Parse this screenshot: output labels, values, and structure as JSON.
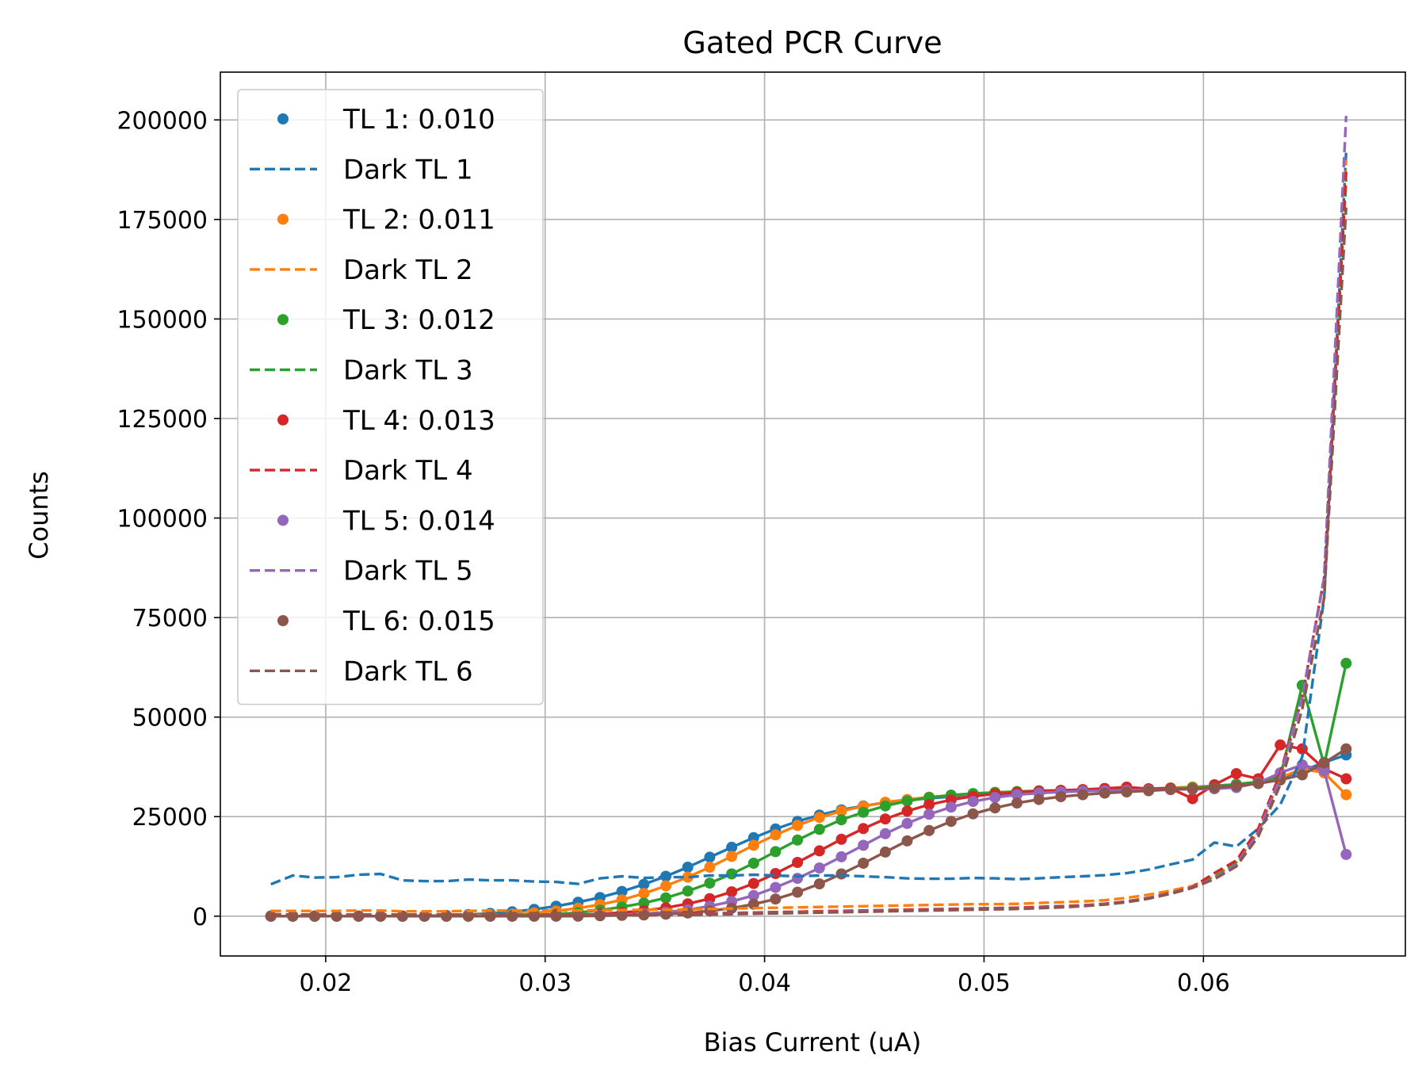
{
  "chart_data": {
    "type": "line",
    "title": "Gated PCR Curve",
    "xlabel": "Bias Current (uA)",
    "ylabel": "Counts",
    "xlim": [
      0.0152,
      0.0692
    ],
    "ylim": [
      -10000,
      212000
    ],
    "xticks": [
      0.02,
      0.03,
      0.04,
      0.05,
      0.06
    ],
    "xtick_labels": [
      "0.02",
      "0.03",
      "0.04",
      "0.05",
      "0.06"
    ],
    "yticks": [
      0,
      25000,
      50000,
      75000,
      100000,
      125000,
      150000,
      175000,
      200000
    ],
    "ytick_labels": [
      "0",
      "25000",
      "50000",
      "75000",
      "100000",
      "125000",
      "150000",
      "175000",
      "200000"
    ],
    "grid": true,
    "legend_position": "upper-left",
    "x": [
      0.0175,
      0.0185,
      0.0195,
      0.0205,
      0.0215,
      0.0225,
      0.0235,
      0.0245,
      0.0255,
      0.0265,
      0.0275,
      0.0285,
      0.0295,
      0.0305,
      0.0315,
      0.0325,
      0.0335,
      0.0345,
      0.0355,
      0.0365,
      0.0375,
      0.0385,
      0.0395,
      0.0405,
      0.0415,
      0.0425,
      0.0435,
      0.0445,
      0.0455,
      0.0465,
      0.0475,
      0.0485,
      0.0495,
      0.0505,
      0.0515,
      0.0525,
      0.0535,
      0.0545,
      0.0555,
      0.0565,
      0.0575,
      0.0585,
      0.0595,
      0.0605,
      0.0615,
      0.0625,
      0.0635,
      0.0645,
      0.0655,
      0.0665
    ],
    "series": [
      {
        "name": "TL 1: 0.010",
        "color": "#1f77b4",
        "values": [
          0,
          0,
          0,
          0,
          0,
          0,
          0,
          100,
          200,
          400,
          700,
          1100,
          1700,
          2500,
          3500,
          4700,
          6200,
          8000,
          10000,
          12300,
          14800,
          17300,
          19700,
          21900,
          23800,
          25400,
          26700,
          27700,
          28500,
          29100,
          29600,
          30000,
          30300,
          30600,
          30800,
          31000,
          31200,
          31400,
          31600,
          31800,
          32000,
          32200,
          32400,
          32700,
          33100,
          33700,
          34700,
          36500,
          38600,
          40500
        ]
      },
      {
        "name": "Dark TL 1",
        "color": "#1f77b4",
        "dashed": true,
        "values": [
          8000,
          10200,
          9700,
          9800,
          10400,
          10600,
          9000,
          8800,
          8800,
          9200,
          9000,
          9000,
          8700,
          8600,
          8100,
          9500,
          10000,
          9600,
          9800,
          9800,
          10200,
          10200,
          10400,
          10200,
          10000,
          10200,
          10200,
          10000,
          9800,
          9500,
          9400,
          9400,
          9600,
          9500,
          9300,
          9500,
          9800,
          10000,
          10300,
          10800,
          11700,
          13000,
          14200,
          18500,
          17500,
          22000,
          28000,
          40000,
          80000,
          192000
        ]
      },
      {
        "name": "TL 2: 0.011",
        "color": "#ff7f0e",
        "values": [
          0,
          0,
          0,
          0,
          0,
          0,
          0,
          0,
          100,
          200,
          300,
          500,
          800,
          1300,
          2000,
          2900,
          4100,
          5700,
          7600,
          9800,
          12300,
          15000,
          17800,
          20400,
          22800,
          24800,
          26400,
          27600,
          28600,
          29300,
          29900,
          30300,
          30700,
          31000,
          31200,
          31400,
          31500,
          31700,
          31800,
          31900,
          32000,
          32200,
          32400,
          32600,
          33100,
          33700,
          34800,
          37000,
          36000,
          30500
        ]
      },
      {
        "name": "Dark TL 2",
        "color": "#ff7f0e",
        "dashed": true,
        "values": [
          1300,
          1300,
          1300,
          1300,
          1400,
          1400,
          1200,
          1200,
          1200,
          1300,
          1400,
          1400,
          1400,
          1400,
          1400,
          1500,
          1500,
          1600,
          1600,
          1700,
          1800,
          1900,
          2000,
          2100,
          2200,
          2300,
          2400,
          2500,
          2600,
          2700,
          2800,
          2900,
          3000,
          3000,
          3100,
          3300,
          3500,
          3700,
          4000,
          4600,
          5400,
          6400,
          7600,
          10000,
          13500,
          21000,
          35000,
          55000,
          85000,
          190000
        ]
      },
      {
        "name": "TL 3: 0.012",
        "color": "#2ca02c",
        "values": [
          0,
          0,
          0,
          0,
          0,
          0,
          0,
          0,
          0,
          0,
          100,
          200,
          300,
          500,
          900,
          1500,
          2300,
          3300,
          4600,
          6300,
          8300,
          10600,
          13300,
          16200,
          19100,
          21800,
          24200,
          26100,
          27700,
          28900,
          29800,
          30400,
          30800,
          31100,
          31300,
          31500,
          31600,
          31700,
          31800,
          31900,
          32000,
          32100,
          32200,
          32600,
          33100,
          33700,
          35000,
          58000,
          38000,
          63500
        ]
      },
      {
        "name": "Dark TL 3",
        "color": "#2ca02c",
        "dashed": true,
        "values": [
          500,
          400,
          400,
          400,
          400,
          400,
          400,
          400,
          400,
          400,
          400,
          400,
          400,
          400,
          400,
          400,
          400,
          500,
          500,
          600,
          700,
          800,
          900,
          1000,
          1100,
          1200,
          1300,
          1400,
          1500,
          1600,
          1700,
          1800,
          1900,
          2000,
          2100,
          2300,
          2500,
          2700,
          3100,
          3700,
          4600,
          5800,
          7300,
          9800,
          13500,
          21000,
          35000,
          55000,
          85000,
          185000
        ]
      },
      {
        "name": "TL 4: 0.013",
        "color": "#d62728",
        "values": [
          0,
          0,
          0,
          0,
          0,
          0,
          0,
          0,
          0,
          0,
          0,
          0,
          100,
          200,
          300,
          600,
          900,
          1400,
          2100,
          3100,
          4400,
          6100,
          8200,
          10700,
          13500,
          16400,
          19300,
          22000,
          24400,
          26400,
          28000,
          29200,
          30100,
          30700,
          31100,
          31400,
          31600,
          31800,
          32100,
          32400,
          32000,
          32100,
          29500,
          33000,
          35800,
          34500,
          43000,
          42000,
          37000,
          34500
        ]
      },
      {
        "name": "Dark TL 4",
        "color": "#d62728",
        "dashed": true,
        "values": [
          500,
          400,
          400,
          400,
          400,
          400,
          400,
          400,
          400,
          400,
          400,
          400,
          400,
          400,
          400,
          400,
          400,
          500,
          500,
          600,
          700,
          800,
          900,
          1000,
          1100,
          1200,
          1300,
          1400,
          1500,
          1600,
          1700,
          1800,
          1900,
          2000,
          2100,
          2300,
          2500,
          2700,
          3100,
          3700,
          4600,
          5800,
          7300,
          10800,
          14000,
          22000,
          36000,
          55000,
          85000,
          187000
        ]
      },
      {
        "name": "TL 5: 0.014",
        "color": "#9467bd",
        "values": [
          0,
          0,
          0,
          0,
          0,
          0,
          0,
          0,
          0,
          0,
          0,
          0,
          0,
          0,
          100,
          200,
          300,
          600,
          1000,
          1600,
          2500,
          3700,
          5200,
          7200,
          9500,
          12100,
          14900,
          17800,
          20700,
          23300,
          25600,
          27400,
          28800,
          29800,
          30500,
          30900,
          31200,
          31400,
          31500,
          31600,
          31700,
          31800,
          31900,
          32000,
          32300,
          33500,
          36000,
          38000,
          36500,
          15500
        ]
      },
      {
        "name": "Dark TL 5",
        "color": "#9467bd",
        "dashed": true,
        "values": [
          300,
          300,
          300,
          300,
          300,
          300,
          300,
          300,
          300,
          300,
          300,
          300,
          300,
          300,
          300,
          300,
          300,
          300,
          400,
          400,
          500,
          600,
          700,
          800,
          900,
          1000,
          1100,
          1200,
          1300,
          1400,
          1500,
          1600,
          1700,
          1800,
          1900,
          2100,
          2300,
          2600,
          3000,
          3600,
          4500,
          5700,
          7200,
          9500,
          13000,
          21000,
          35000,
          55000,
          85000,
          201000
        ]
      },
      {
        "name": "TL 6: 0.015",
        "color": "#8c564b",
        "values": [
          0,
          0,
          0,
          0,
          0,
          0,
          0,
          0,
          0,
          0,
          0,
          0,
          0,
          0,
          0,
          100,
          200,
          300,
          500,
          800,
          1300,
          2000,
          3000,
          4300,
          6000,
          8100,
          10600,
          13300,
          16100,
          18900,
          21500,
          23800,
          25700,
          27200,
          28400,
          29300,
          30000,
          30500,
          30900,
          31200,
          31500,
          31800,
          32000,
          32300,
          32700,
          33300,
          34200,
          35500,
          38500,
          42000
        ]
      },
      {
        "name": "Dark TL 6",
        "color": "#8c564b",
        "dashed": true,
        "values": [
          200,
          200,
          200,
          200,
          200,
          200,
          200,
          200,
          200,
          200,
          200,
          200,
          200,
          200,
          200,
          200,
          200,
          200,
          300,
          300,
          400,
          500,
          600,
          700,
          800,
          900,
          1000,
          1100,
          1200,
          1300,
          1400,
          1500,
          1600,
          1700,
          1800,
          2000,
          2200,
          2500,
          2900,
          3500,
          4400,
          5600,
          7100,
          9300,
          12500,
          20000,
          33000,
          52000,
          80000,
          178000
        ]
      }
    ]
  }
}
